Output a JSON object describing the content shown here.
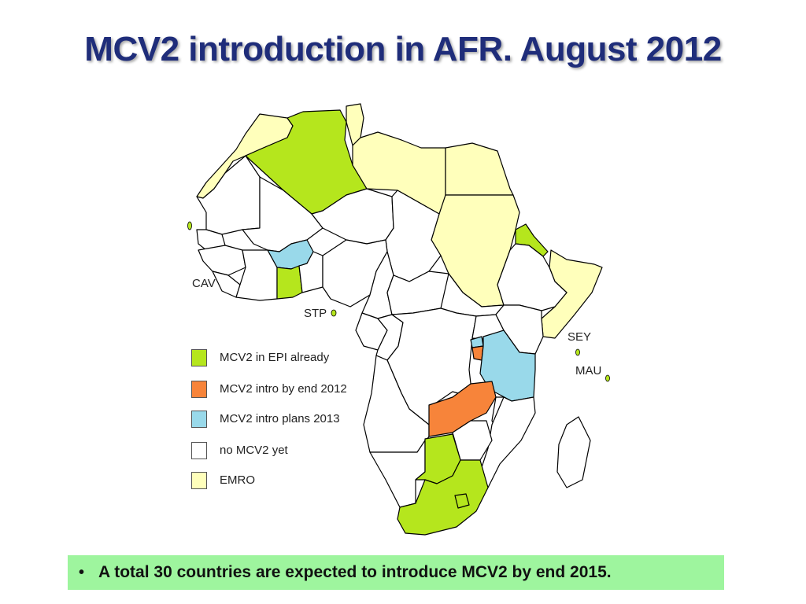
{
  "slide": {
    "title": "MCV2 introduction in AFR. August 2012",
    "note": "A total 30 countries are expected to introduce MCV2 by end 2015."
  },
  "colors": {
    "epi_already": "#b5e61d",
    "intro_2012": "#f7843a",
    "intro_2013": "#99d9ea",
    "none": "#ffffff",
    "emro": "#ffffbb",
    "note_background": "#9ef59e",
    "title": "#1f2d7a"
  },
  "map": {
    "labels": {
      "cav": "CAV",
      "stp": "STP",
      "sey": "SEY",
      "mau": "MAU"
    }
  },
  "legend": {
    "items": [
      {
        "label": "MCV2 in EPI already",
        "color": "#b5e61d"
      },
      {
        "label": "MCV2 intro by end 2012",
        "color": "#f7843a"
      },
      {
        "label": "MCV2 intro plans 2013",
        "color": "#99d9ea"
      },
      {
        "label": "no MCV2 yet",
        "color": "#ffffff"
      },
      {
        "label": "EMRO",
        "color": "#ffffbb"
      }
    ]
  }
}
